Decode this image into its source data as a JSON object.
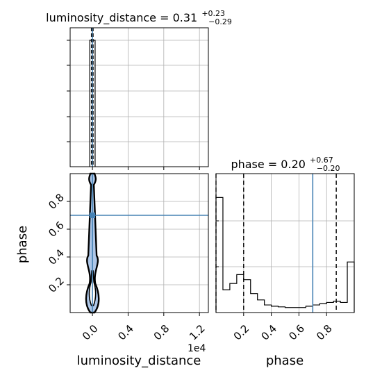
{
  "chart_data": {
    "type": "corner",
    "params": [
      "luminosity_distance",
      "phase"
    ],
    "truths": {
      "luminosity_distance": 0.0,
      "phase": 0.7
    },
    "colors": {
      "hist": "#000000",
      "truth": "#4682b4",
      "grid": "#b0b0b0",
      "contour_fill": "#aec7e8"
    },
    "panels": {
      "dist_luminosity_distance": {
        "title": {
          "main": "luminosity_distance = 0.31",
          "sup": "+0.23",
          "sub": "−0.29"
        },
        "xlim": [
          -0.25,
          1.3
        ],
        "quantile_lines_scaled": [
          0.02,
          0.31,
          0.54
        ],
        "histogram_peak_bin": [
          -0.03,
          0.03
        ]
      },
      "dist_phase": {
        "title": {
          "main": "phase = 0.20",
          "sup": "+0.67",
          "sub": "−0.20"
        },
        "xlim": [
          0.0,
          1.0
        ],
        "quantile_lines": [
          0.0,
          0.2,
          0.87
        ],
        "bin_edges": [
          0.0,
          0.05,
          0.1,
          0.15,
          0.2,
          0.25,
          0.3,
          0.35,
          0.4,
          0.45,
          0.5,
          0.55,
          0.6,
          0.65,
          0.7,
          0.75,
          0.8,
          0.85,
          0.9,
          0.95,
          1.0
        ],
        "relative_density": [
          0.91,
          0.18,
          0.23,
          0.3,
          0.26,
          0.15,
          0.1,
          0.06,
          0.05,
          0.045,
          0.04,
          0.04,
          0.04,
          0.05,
          0.06,
          0.07,
          0.08,
          0.09,
          0.08,
          0.4
        ]
      },
      "joint": {
        "xlim": [
          -0.25,
          1.3
        ],
        "ylim": [
          0.0,
          1.0
        ],
        "contour_center_x": 0.0
      }
    },
    "x_ticks_dl": [
      "0.0",
      "0.4",
      "0.8",
      "1.2"
    ],
    "x_ticks_dl_values": [
      0.0,
      0.4,
      0.8,
      1.2
    ],
    "dl_offset": "1e4",
    "phase_ticks": [
      "0.2",
      "0.4",
      "0.6",
      "0.8"
    ],
    "phase_ticks_values": [
      0.2,
      0.4,
      0.6,
      0.8
    ],
    "xlabel_dl": "luminosity_distance",
    "xlabel_phase": "phase",
    "ylabel_phase": "phase"
  }
}
